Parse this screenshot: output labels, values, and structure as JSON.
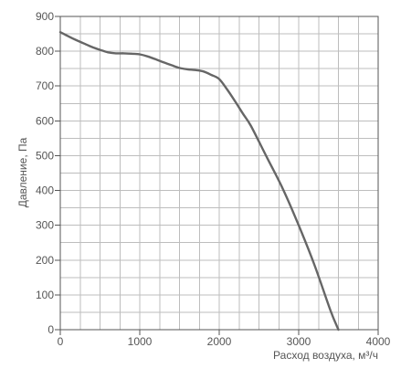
{
  "chart_data": {
    "type": "line",
    "title": "",
    "xlabel": "Расход воздуха, м³/ч",
    "ylabel": "Давление, Па",
    "xlim": [
      0,
      4000
    ],
    "ylim": [
      0,
      900
    ],
    "x_ticks": [
      0,
      1000,
      2000,
      3000,
      4000
    ],
    "y_ticks": [
      0,
      100,
      200,
      300,
      400,
      500,
      600,
      700,
      800,
      900
    ],
    "x_tick_labels": [
      "0",
      "1000",
      "2000",
      "3000",
      "4000"
    ],
    "y_tick_labels": [
      "0",
      "100",
      "200",
      "300",
      "400",
      "500",
      "600",
      "700",
      "800",
      "900"
    ],
    "x_minor_step": 250,
    "y_minor_step": 50,
    "grid": true,
    "line_color": "#666666",
    "grid_color": "#bdbdbd",
    "axis_color": "#555555",
    "series": [
      {
        "name": "",
        "x": [
          0,
          100,
          200,
          300,
          400,
          500,
          600,
          700,
          800,
          900,
          1000,
          1100,
          1200,
          1300,
          1400,
          1500,
          1600,
          1700,
          1800,
          1900,
          2000,
          2100,
          2200,
          2300,
          2400,
          2600,
          2800,
          3000,
          3200,
          3400,
          3500
        ],
        "y": [
          855,
          843,
          832,
          822,
          812,
          804,
          797,
          794,
          794,
          793,
          791,
          785,
          777,
          768,
          760,
          752,
          748,
          746,
          742,
          732,
          720,
          690,
          656,
          620,
          585,
          495,
          405,
          300,
          185,
          55,
          0
        ]
      }
    ]
  }
}
